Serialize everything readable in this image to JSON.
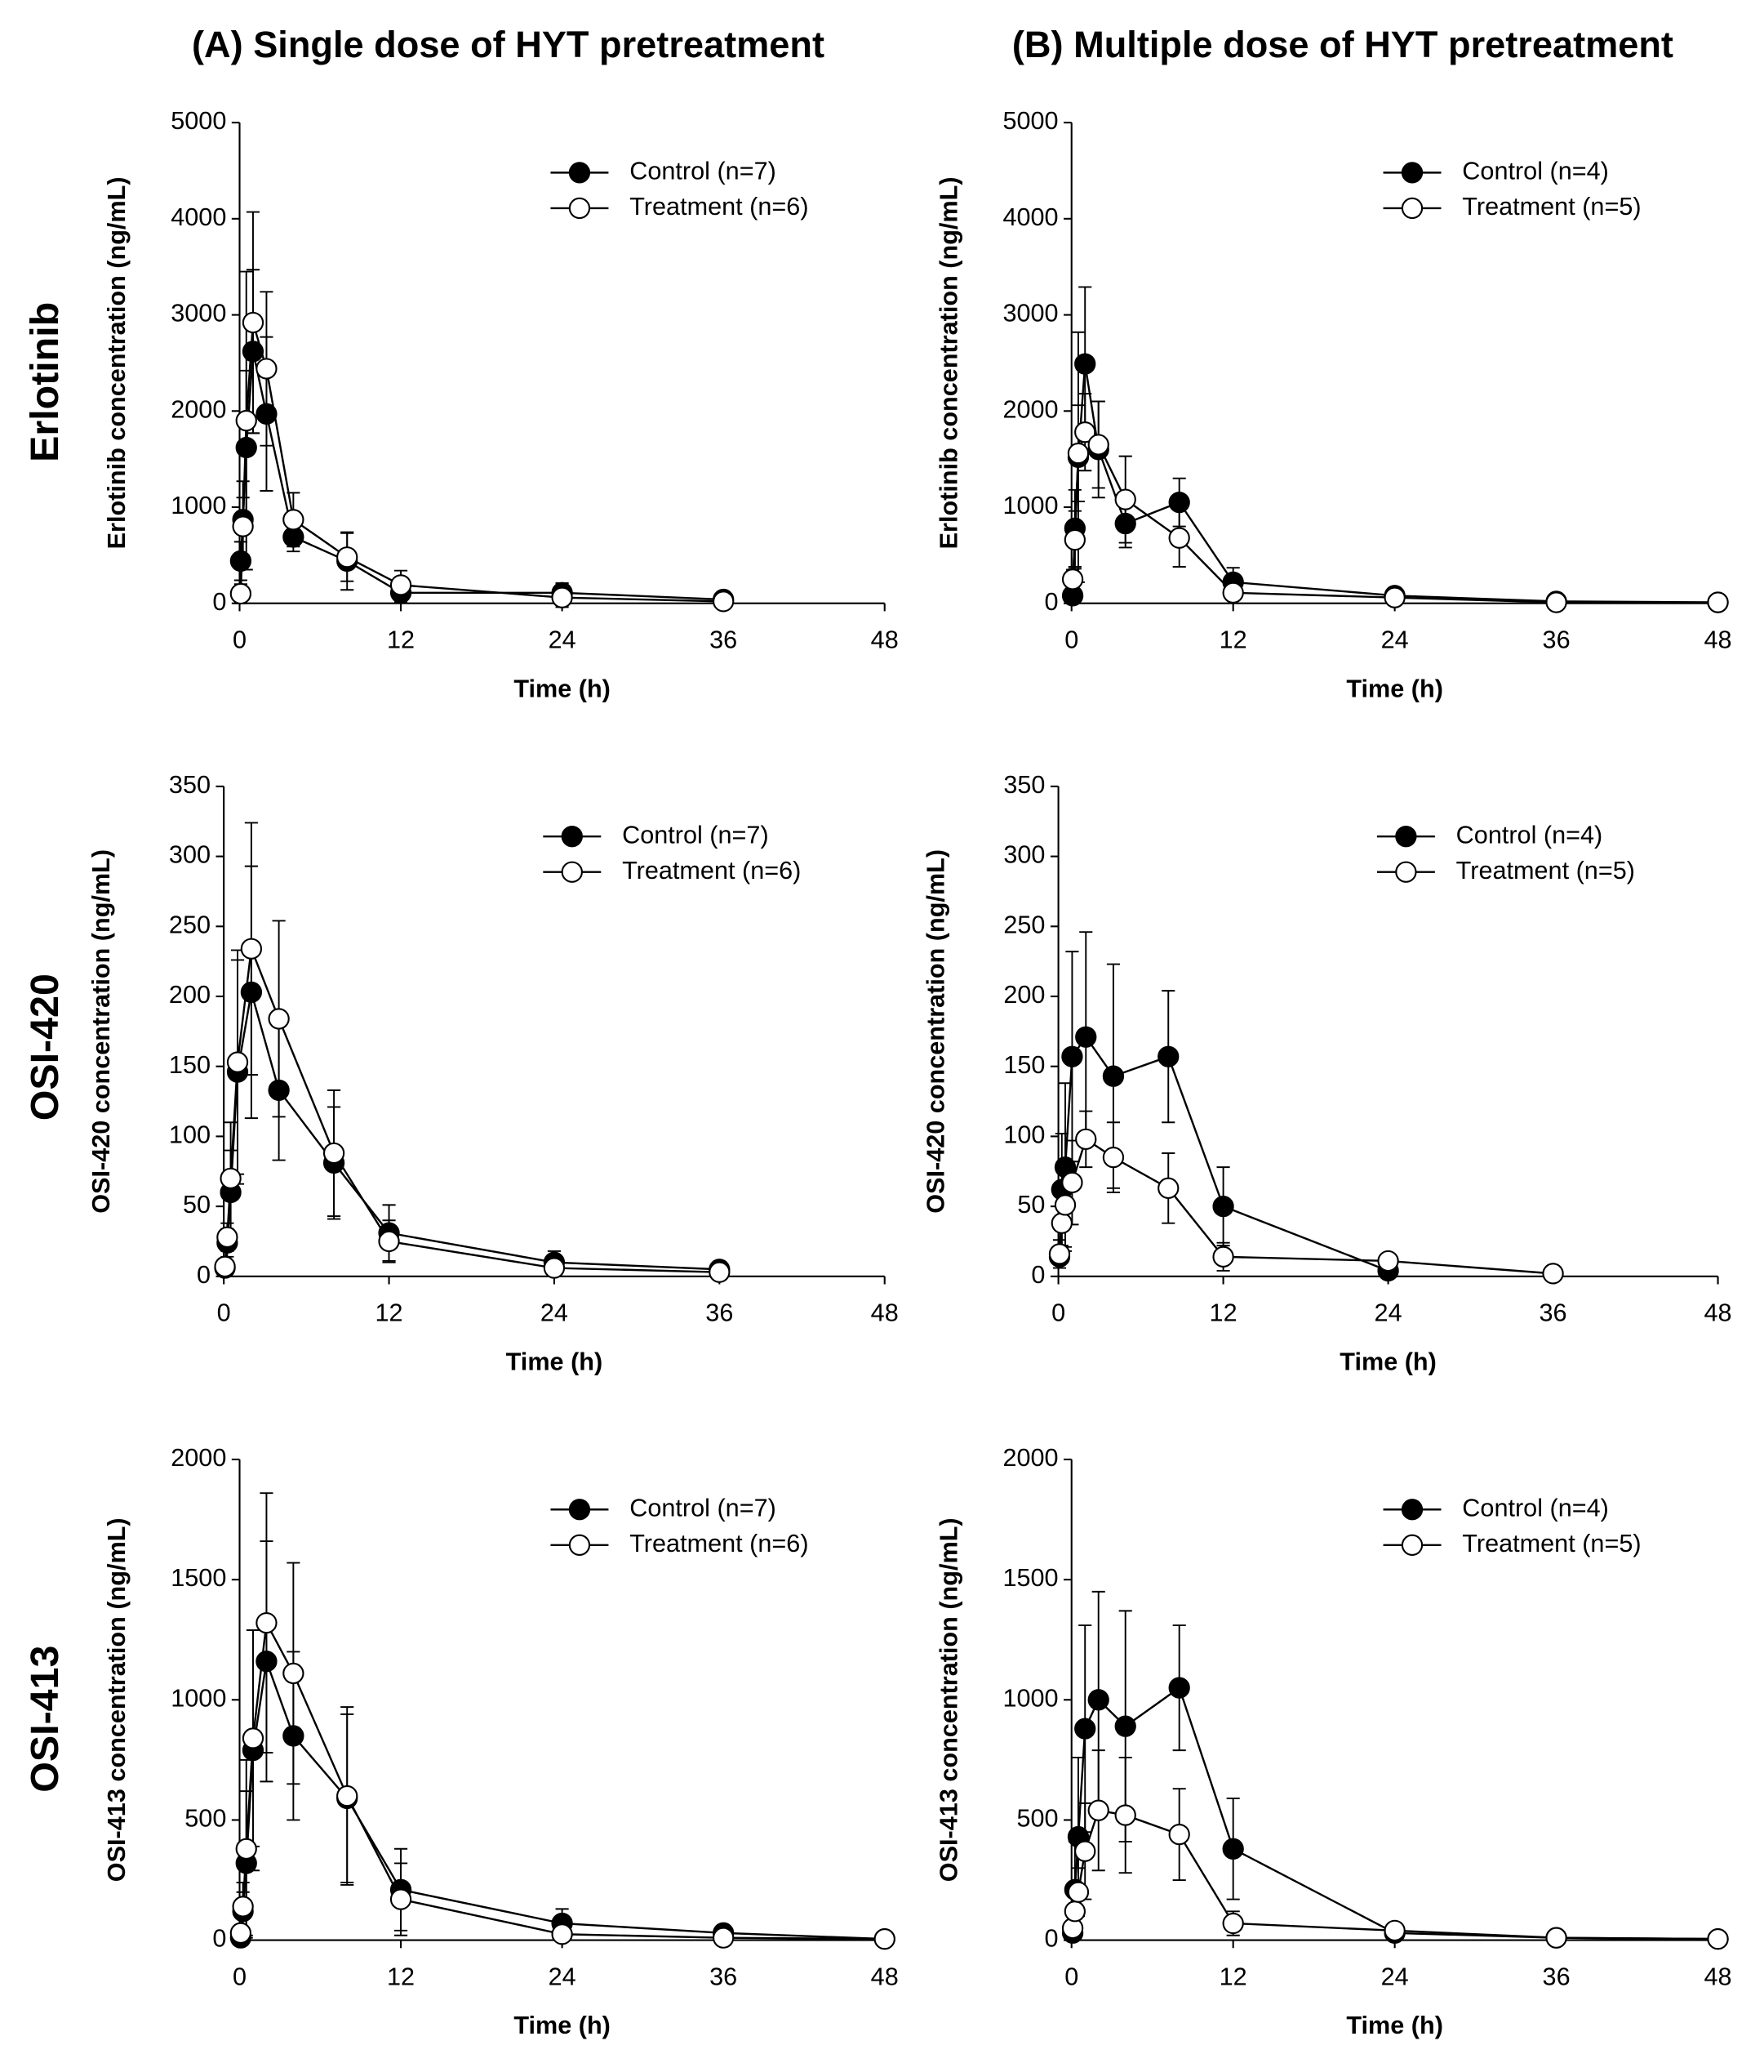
{
  "column_titles": [
    "(A) Single dose of HYT pretreatment",
    "(B) Multiple dose of HYT pretreatment"
  ],
  "row_labels": [
    "Erlotinib",
    "OSI-420",
    "OSI-413"
  ],
  "chart_data": [
    {
      "type": "line",
      "xlabel": "Time (h)",
      "ylabel": "Erlotinib concentration (ng/mL)",
      "x": [
        0.083,
        0.25,
        0.5,
        1,
        2,
        4,
        8,
        12,
        24,
        36,
        48
      ],
      "xlim": [
        0,
        48
      ],
      "xticks": [
        0,
        12,
        24,
        36,
        48
      ],
      "ylim": [
        0,
        5000
      ],
      "yticks": [
        0,
        1000,
        2000,
        3000,
        4000,
        5000
      ],
      "series": [
        {
          "name": "Control (n=7)",
          "color": "#000000",
          "marker": "filled",
          "values": [
            440,
            870,
            1620,
            2620,
            1970,
            690,
            440,
            110,
            110,
            40,
            null
          ],
          "errors": [
            200,
            400,
            800,
            850,
            800,
            150,
            300,
            100,
            100,
            30,
            null
          ]
        },
        {
          "name": "Treatment (n=6)",
          "color": "#000000",
          "marker": "open",
          "values": [
            100,
            800,
            1900,
            2920,
            2440,
            870,
            480,
            190,
            60,
            20,
            null
          ],
          "errors": [
            100,
            300,
            1550,
            1150,
            800,
            280,
            250,
            150,
            100,
            20,
            null
          ]
        }
      ]
    },
    {
      "type": "line",
      "xlabel": "Time (h)",
      "ylabel": "Erlotinib concentration (ng/mL)",
      "x": [
        0.083,
        0.25,
        0.5,
        1,
        2,
        4,
        8,
        12,
        24,
        36,
        48
      ],
      "xlim": [
        0,
        48
      ],
      "xticks": [
        0,
        12,
        24,
        36,
        48
      ],
      "ylim": [
        0,
        5000
      ],
      "yticks": [
        0,
        1000,
        2000,
        3000,
        4000,
        5000
      ],
      "series": [
        {
          "name": "Control (n=4)",
          "color": "#000000",
          "marker": "filled",
          "values": [
            80,
            780,
            1520,
            2490,
            1600,
            830,
            1050,
            220,
            80,
            20,
            10
          ],
          "errors": [
            50,
            400,
            1300,
            800,
            500,
            250,
            250,
            150,
            50,
            10,
            5
          ]
        },
        {
          "name": "Treatment (n=5)",
          "color": "#000000",
          "marker": "open",
          "values": [
            250,
            660,
            1560,
            1780,
            1650,
            1080,
            680,
            110,
            60,
            10,
            10
          ],
          "errors": [
            100,
            300,
            500,
            400,
            450,
            450,
            300,
            50,
            40,
            10,
            5
          ]
        }
      ]
    },
    {
      "type": "line",
      "xlabel": "Time (h)",
      "ylabel": "OSI-420 concentration (ng/mL)",
      "x": [
        0.083,
        0.25,
        0.5,
        1,
        2,
        4,
        8,
        12,
        24,
        36,
        48
      ],
      "xlim": [
        0,
        48
      ],
      "xticks": [
        0,
        12,
        24,
        36,
        48
      ],
      "ylim": [
        0,
        350
      ],
      "yticks": [
        0,
        50,
        100,
        150,
        200,
        250,
        300,
        350
      ],
      "series": [
        {
          "name": "Control (n=7)",
          "color": "#000000",
          "marker": "filled",
          "values": [
            6,
            24,
            60,
            146,
            203,
            133,
            81,
            31,
            10,
            5,
            null
          ],
          "errors": [
            3,
            10,
            30,
            80,
            90,
            50,
            40,
            20,
            8,
            3,
            null
          ]
        },
        {
          "name": "Treatment (n=6)",
          "color": "#000000",
          "marker": "open",
          "values": [
            7,
            28,
            70,
            153,
            234,
            184,
            88,
            25,
            6,
            3,
            null
          ],
          "errors": [
            3,
            10,
            40,
            80,
            90,
            70,
            45,
            15,
            5,
            2,
            null
          ]
        }
      ]
    },
    {
      "type": "line",
      "xlabel": "Time (h)",
      "ylabel": "OSI-420 concentration (ng/mL)",
      "x": [
        0.083,
        0.25,
        0.5,
        1,
        2,
        4,
        8,
        12,
        24,
        36,
        48
      ],
      "xlim": [
        0,
        48
      ],
      "xticks": [
        0,
        12,
        24,
        36,
        48
      ],
      "ylim": [
        0,
        350
      ],
      "yticks": [
        0,
        50,
        100,
        150,
        200,
        250,
        300,
        350
      ],
      "series": [
        {
          "name": "Control (n=4)",
          "color": "#000000",
          "marker": "filled",
          "values": [
            14,
            62,
            78,
            157,
            171,
            143,
            157,
            50,
            4,
            null,
            null
          ],
          "errors": [
            5,
            40,
            60,
            75,
            75,
            80,
            47,
            28,
            3,
            null,
            null
          ]
        },
        {
          "name": "Treatment (n=5)",
          "color": "#000000",
          "marker": "open",
          "values": [
            16,
            38,
            51,
            67,
            98,
            85,
            63,
            14,
            11,
            2,
            null
          ],
          "errors": [
            10,
            20,
            30,
            30,
            20,
            25,
            25,
            10,
            5,
            1,
            null
          ]
        }
      ]
    },
    {
      "type": "line",
      "xlabel": "Time (h)",
      "ylabel": "OSI-413 concentration (ng/mL)",
      "x": [
        0.083,
        0.25,
        0.5,
        1,
        2,
        4,
        8,
        12,
        24,
        36,
        48
      ],
      "xlim": [
        0,
        48
      ],
      "xticks": [
        0,
        12,
        24,
        36,
        48
      ],
      "ylim": [
        0,
        2000
      ],
      "yticks": [
        0,
        500,
        1000,
        1500,
        2000
      ],
      "series": [
        {
          "name": "Control (n=7)",
          "color": "#000000",
          "marker": "filled",
          "values": [
            10,
            120,
            320,
            790,
            1160,
            850,
            590,
            210,
            70,
            30,
            5
          ],
          "errors": [
            10,
            80,
            300,
            500,
            500,
            350,
            350,
            170,
            60,
            20,
            3
          ]
        },
        {
          "name": "Treatment (n=6)",
          "color": "#000000",
          "marker": "open",
          "values": [
            30,
            140,
            380,
            840,
            1320,
            1110,
            600,
            170,
            25,
            10,
            5
          ],
          "errors": [
            20,
            100,
            370,
            450,
            540,
            460,
            370,
            150,
            25,
            10,
            3
          ]
        }
      ]
    },
    {
      "type": "line",
      "xlabel": "Time (h)",
      "ylabel": "OSI-413 concentration (ng/mL)",
      "x": [
        0.083,
        0.25,
        0.5,
        1,
        2,
        4,
        8,
        12,
        24,
        36,
        48
      ],
      "xlim": [
        0,
        48
      ],
      "xticks": [
        0,
        12,
        24,
        36,
        48
      ],
      "ylim": [
        0,
        2000
      ],
      "yticks": [
        0,
        500,
        1000,
        1500,
        2000
      ],
      "series": [
        {
          "name": "Control (n=4)",
          "color": "#000000",
          "marker": "filled",
          "values": [
            30,
            210,
            430,
            880,
            1000,
            890,
            1050,
            380,
            30,
            10,
            5
          ],
          "errors": [
            20,
            200,
            330,
            430,
            450,
            480,
            260,
            210,
            20,
            5,
            3
          ]
        },
        {
          "name": "Treatment (n=5)",
          "color": "#000000",
          "marker": "open",
          "values": [
            50,
            120,
            200,
            370,
            540,
            520,
            440,
            70,
            40,
            10,
            5
          ],
          "errors": [
            30,
            60,
            100,
            200,
            250,
            240,
            190,
            50,
            30,
            5,
            3
          ]
        }
      ]
    }
  ]
}
